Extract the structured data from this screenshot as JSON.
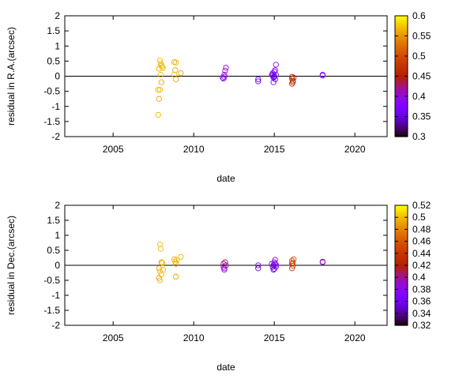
{
  "chart_data": [
    {
      "type": "scatter",
      "xlabel": "date",
      "ylabel": "residual in R.A.(arcsec)",
      "xlim": [
        2002,
        2022
      ],
      "ylim": [
        -2,
        2
      ],
      "xticks": [
        2005,
        2010,
        2015,
        2020
      ],
      "yticks": [
        -2,
        -1.5,
        -1,
        -0.5,
        0,
        0.5,
        1,
        1.5,
        2
      ],
      "zero_line": true,
      "marker": "open-circle",
      "colorbar": {
        "min": 0.3,
        "max": 0.6,
        "ticks": [
          0.3,
          0.35,
          0.4,
          0.45,
          0.5,
          0.55,
          0.6
        ],
        "placement": "right"
      },
      "points": [
        {
          "x": 2007.9,
          "y": 0.52,
          "c": 0.57
        },
        {
          "x": 2007.95,
          "y": 0.42,
          "c": 0.57
        },
        {
          "x": 2008.0,
          "y": 0.35,
          "c": 0.56
        },
        {
          "x": 2008.05,
          "y": 0.3,
          "c": 0.57
        },
        {
          "x": 2007.85,
          "y": 0.25,
          "c": 0.56
        },
        {
          "x": 2008.1,
          "y": 0.27,
          "c": 0.58
        },
        {
          "x": 2007.95,
          "y": 0.05,
          "c": 0.57
        },
        {
          "x": 2008.0,
          "y": -0.2,
          "c": 0.56
        },
        {
          "x": 2007.8,
          "y": -0.45,
          "c": 0.57
        },
        {
          "x": 2007.9,
          "y": -0.45,
          "c": 0.57
        },
        {
          "x": 2007.85,
          "y": -0.75,
          "c": 0.56
        },
        {
          "x": 2007.8,
          "y": -1.28,
          "c": 0.57
        },
        {
          "x": 2008.8,
          "y": 0.47,
          "c": 0.56
        },
        {
          "x": 2008.9,
          "y": 0.45,
          "c": 0.57
        },
        {
          "x": 2008.85,
          "y": 0.2,
          "c": 0.56
        },
        {
          "x": 2008.8,
          "y": 0.05,
          "c": 0.57
        },
        {
          "x": 2008.9,
          "y": -0.1,
          "c": 0.56
        },
        {
          "x": 2009.2,
          "y": 0.1,
          "c": 0.56
        },
        {
          "x": 2011.8,
          "y": -0.05,
          "c": 0.39
        },
        {
          "x": 2011.85,
          "y": -0.08,
          "c": 0.38
        },
        {
          "x": 2011.9,
          "y": 0.05,
          "c": 0.4
        },
        {
          "x": 2011.95,
          "y": 0.18,
          "c": 0.41
        },
        {
          "x": 2012.0,
          "y": 0.28,
          "c": 0.4
        },
        {
          "x": 2011.9,
          "y": -0.02,
          "c": 0.39
        },
        {
          "x": 2014.0,
          "y": -0.1,
          "c": 0.36
        },
        {
          "x": 2014.0,
          "y": -0.17,
          "c": 0.35
        },
        {
          "x": 2014.85,
          "y": 0.05,
          "c": 0.37
        },
        {
          "x": 2014.9,
          "y": 0.1,
          "c": 0.38
        },
        {
          "x": 2014.95,
          "y": -0.05,
          "c": 0.36
        },
        {
          "x": 2015.0,
          "y": 0.0,
          "c": 0.37
        },
        {
          "x": 2015.0,
          "y": 0.15,
          "c": 0.38
        },
        {
          "x": 2015.05,
          "y": -0.1,
          "c": 0.36
        },
        {
          "x": 2015.1,
          "y": 0.05,
          "c": 0.37
        },
        {
          "x": 2015.05,
          "y": 0.2,
          "c": 0.39
        },
        {
          "x": 2014.95,
          "y": -0.2,
          "c": 0.38
        },
        {
          "x": 2015.1,
          "y": 0.38,
          "c": 0.4
        },
        {
          "x": 2015.0,
          "y": -0.02,
          "c": 0.35
        },
        {
          "x": 2014.9,
          "y": 0.02,
          "c": 0.36
        },
        {
          "x": 2016.1,
          "y": -0.02,
          "c": 0.47
        },
        {
          "x": 2016.1,
          "y": -0.08,
          "c": 0.46
        },
        {
          "x": 2016.15,
          "y": -0.15,
          "c": 0.47
        },
        {
          "x": 2016.1,
          "y": -0.25,
          "c": 0.46
        },
        {
          "x": 2016.2,
          "y": -0.05,
          "c": 0.45
        },
        {
          "x": 2016.15,
          "y": -0.2,
          "c": 0.47
        },
        {
          "x": 2018.0,
          "y": 0.05,
          "c": 0.39
        },
        {
          "x": 2018.0,
          "y": 0.02,
          "c": 0.38
        }
      ]
    },
    {
      "type": "scatter",
      "xlabel": "date",
      "ylabel": "residual in Dec.(arcsec)",
      "xlim": [
        2002,
        2022
      ],
      "ylim": [
        -2,
        2
      ],
      "xticks": [
        2005,
        2010,
        2015,
        2020
      ],
      "yticks": [
        -2,
        -1.5,
        -1,
        -0.5,
        0,
        0.5,
        1,
        1.5,
        2
      ],
      "zero_line": true,
      "marker": "open-circle",
      "colorbar": {
        "min": 0.32,
        "max": 0.52,
        "ticks": [
          0.32,
          0.34,
          0.36,
          0.38,
          0.4,
          0.42,
          0.44,
          0.46,
          0.48,
          0.5,
          0.52
        ],
        "placement": "right"
      },
      "points": [
        {
          "x": 2007.9,
          "y": 0.7,
          "c": 0.5
        },
        {
          "x": 2007.95,
          "y": 0.55,
          "c": 0.5
        },
        {
          "x": 2008.0,
          "y": 0.1,
          "c": 0.49
        },
        {
          "x": 2008.05,
          "y": 0.08,
          "c": 0.5
        },
        {
          "x": 2007.85,
          "y": -0.1,
          "c": 0.49
        },
        {
          "x": 2007.9,
          "y": -0.2,
          "c": 0.5
        },
        {
          "x": 2008.0,
          "y": -0.3,
          "c": 0.5
        },
        {
          "x": 2007.85,
          "y": -0.42,
          "c": 0.49
        },
        {
          "x": 2007.9,
          "y": -0.5,
          "c": 0.5
        },
        {
          "x": 2008.1,
          "y": -0.15,
          "c": 0.5
        },
        {
          "x": 2008.8,
          "y": 0.2,
          "c": 0.49
        },
        {
          "x": 2008.85,
          "y": 0.12,
          "c": 0.5
        },
        {
          "x": 2008.9,
          "y": 0.05,
          "c": 0.49
        },
        {
          "x": 2008.95,
          "y": 0.18,
          "c": 0.5
        },
        {
          "x": 2008.9,
          "y": -0.38,
          "c": 0.49
        },
        {
          "x": 2009.2,
          "y": 0.28,
          "c": 0.5
        },
        {
          "x": 2011.85,
          "y": 0.05,
          "c": 0.4
        },
        {
          "x": 2011.9,
          "y": -0.1,
          "c": 0.39
        },
        {
          "x": 2011.95,
          "y": 0.1,
          "c": 0.41
        },
        {
          "x": 2011.9,
          "y": -0.15,
          "c": 0.38
        },
        {
          "x": 2012.0,
          "y": 0.0,
          "c": 0.4
        },
        {
          "x": 2011.85,
          "y": -0.05,
          "c": 0.39
        },
        {
          "x": 2014.0,
          "y": 0.0,
          "c": 0.36
        },
        {
          "x": 2014.0,
          "y": -0.1,
          "c": 0.35
        },
        {
          "x": 2014.85,
          "y": 0.05,
          "c": 0.36
        },
        {
          "x": 2014.9,
          "y": -0.05,
          "c": 0.35
        },
        {
          "x": 2014.95,
          "y": 0.0,
          "c": 0.37
        },
        {
          "x": 2015.0,
          "y": 0.1,
          "c": 0.38
        },
        {
          "x": 2015.0,
          "y": -0.12,
          "c": 0.36
        },
        {
          "x": 2015.05,
          "y": 0.18,
          "c": 0.39
        },
        {
          "x": 2015.1,
          "y": -0.05,
          "c": 0.37
        },
        {
          "x": 2014.95,
          "y": -0.15,
          "c": 0.35
        },
        {
          "x": 2015.05,
          "y": 0.05,
          "c": 0.36
        },
        {
          "x": 2015.1,
          "y": 0.02,
          "c": 0.38
        },
        {
          "x": 2016.1,
          "y": 0.15,
          "c": 0.45
        },
        {
          "x": 2016.1,
          "y": 0.05,
          "c": 0.44
        },
        {
          "x": 2016.15,
          "y": -0.02,
          "c": 0.45
        },
        {
          "x": 2016.1,
          "y": -0.1,
          "c": 0.44
        },
        {
          "x": 2016.2,
          "y": 0.2,
          "c": 0.45
        },
        {
          "x": 2016.15,
          "y": 0.08,
          "c": 0.44
        },
        {
          "x": 2018.0,
          "y": 0.12,
          "c": 0.4
        },
        {
          "x": 2018.0,
          "y": 0.1,
          "c": 0.39
        }
      ]
    }
  ]
}
